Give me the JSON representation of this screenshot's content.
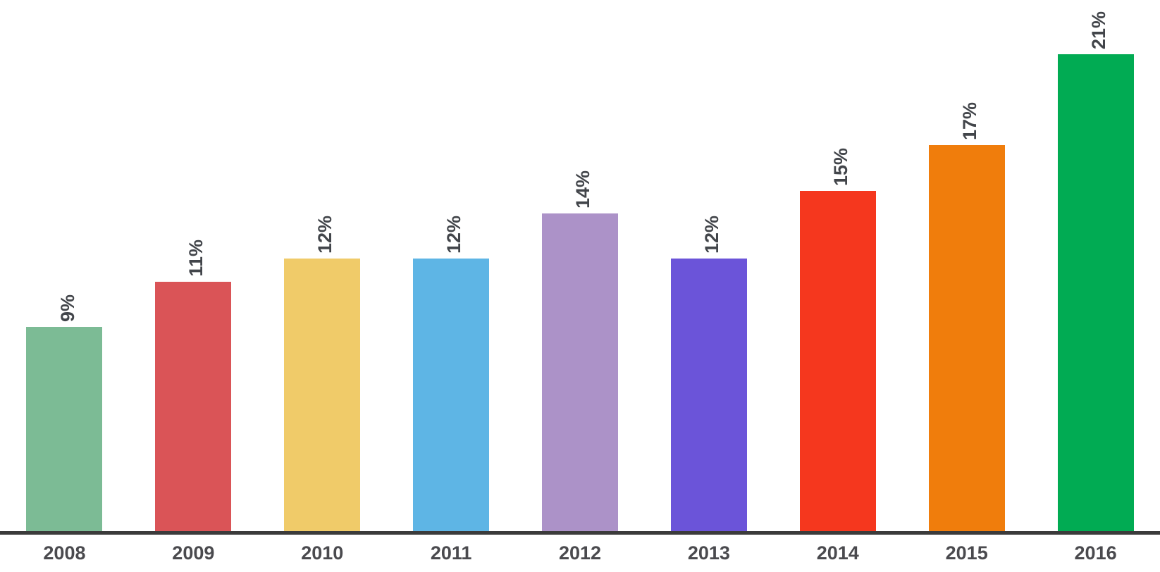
{
  "chart_data": {
    "type": "bar",
    "categories": [
      "2008",
      "2009",
      "2010",
      "2011",
      "2012",
      "2013",
      "2014",
      "2015",
      "2016"
    ],
    "values": [
      9,
      11,
      12,
      12,
      14,
      12,
      15,
      17,
      21
    ],
    "labels": [
      "9%",
      "11%",
      "12%",
      "12%",
      "14%",
      "12%",
      "15%",
      "17%",
      "21%"
    ],
    "colors": [
      "#7cbb95",
      "#da5457",
      "#f0cb69",
      "#5eb5e5",
      "#ac92c8",
      "#6b54d9",
      "#f5371e",
      "#f07d0c",
      "#01ab53"
    ],
    "title": "",
    "xlabel": "",
    "ylabel": "",
    "ylim": [
      0,
      23.4
    ],
    "grid": false,
    "legend": "none",
    "value_label_rotation": -90,
    "axis_line_color": "#3b3b3b",
    "tick_label_color": "#4a4a4e",
    "value_label_color": "#42454a",
    "background_color": "#ffffff"
  }
}
